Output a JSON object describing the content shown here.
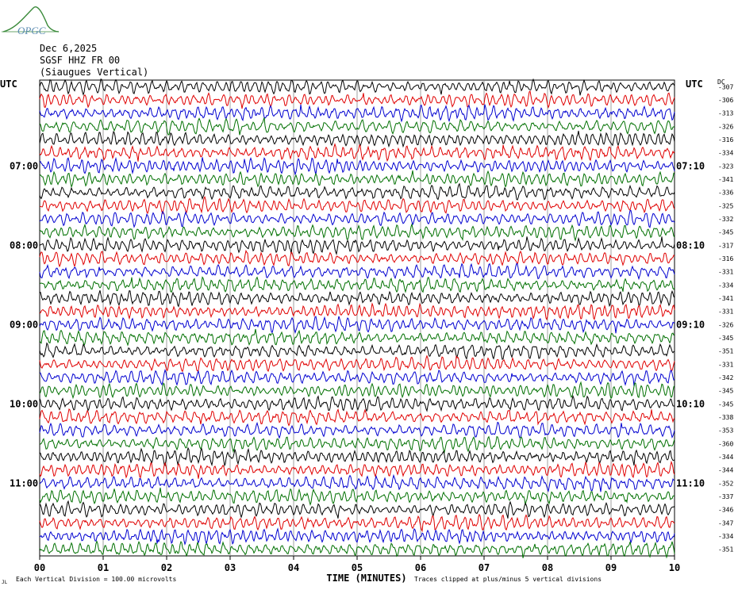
{
  "logo": {
    "text": "OPGC",
    "color": "#3a8a3a"
  },
  "header": {
    "date": "Dec 6,2025",
    "station": "SGSF HHZ FR 00",
    "location": "(Siaugues Vertical)"
  },
  "chart_data": {
    "type": "line",
    "title": "",
    "xlabel": "TIME (MINUTES)",
    "xlim": [
      0,
      10
    ],
    "x_ticks": [
      "00",
      "01",
      "02",
      "03",
      "04",
      "05",
      "06",
      "07",
      "08",
      "09",
      "10"
    ],
    "tz_left": "UTC",
    "tz_right": "UTC",
    "dc_header": "DC",
    "left_time_labels": [
      {
        "row": 6,
        "label": "07:00"
      },
      {
        "row": 12,
        "label": "08:00"
      },
      {
        "row": 18,
        "label": "09:00"
      },
      {
        "row": 24,
        "label": "10:00"
      },
      {
        "row": 30,
        "label": "11:00"
      }
    ],
    "right_time_labels": [
      {
        "row": 6,
        "label": "07:10"
      },
      {
        "row": 12,
        "label": "08:10"
      },
      {
        "row": 18,
        "label": "09:10"
      },
      {
        "row": 24,
        "label": "10:10"
      },
      {
        "row": 30,
        "label": "11:10"
      }
    ],
    "dc_offsets": [
      "-307",
      "-306",
      "-313",
      "-326",
      "-316",
      "-334",
      "-323",
      "-341",
      "-336",
      "-325",
      "-332",
      "-345",
      "-317",
      "-316",
      "-331",
      "-334",
      "-341",
      "-331",
      "-326",
      "-345",
      "-351",
      "-331",
      "-342",
      "-345",
      "-345",
      "-338",
      "-353",
      "-360",
      "-344",
      "-344",
      "-352",
      "-337",
      "-346",
      "-347",
      "-334",
      "-351"
    ],
    "trace_colors": [
      "#000000",
      "#e00000",
      "#0000d0",
      "#007000"
    ],
    "footer_left": "Each Vertical Division =  100.00 microvolts",
    "footer_right": "Traces clipped at plus/minus 5 vertical divisions",
    "corner_mark": "JL",
    "grid": true
  }
}
